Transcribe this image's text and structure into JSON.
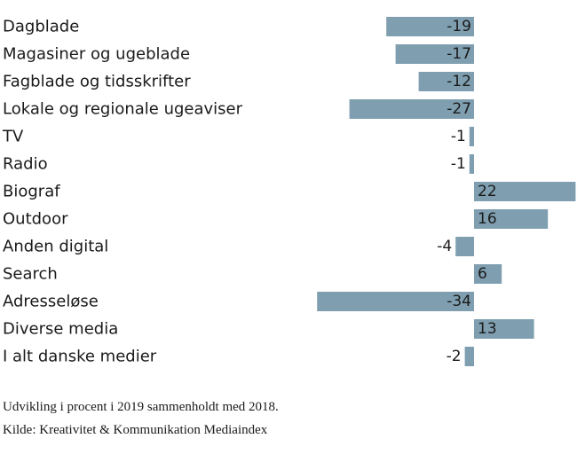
{
  "chart_data": {
    "type": "bar",
    "orientation": "horizontal",
    "categories": [
      "Dagblade",
      "Magasiner og ugeblade",
      "Fagblade og tidsskrifter",
      "Lokale og regionale ugeaviser",
      "TV",
      "Radio",
      "Biograf",
      "Outdoor",
      "Anden digital",
      "Search",
      "Adresseløse",
      "Diverse media",
      "I alt danske medier"
    ],
    "values": [
      -19,
      -17,
      -12,
      -27,
      -1,
      -1,
      22,
      16,
      -4,
      6,
      -34,
      13,
      -2
    ],
    "value_labels": [
      "-19",
      "-17",
      "-12",
      "-27",
      "-1",
      "-1",
      "22",
      "16",
      "-4",
      "6",
      "-34",
      "13",
      "-2"
    ],
    "bar_color": "#7f9fb1",
    "grid": false,
    "legend": "none"
  },
  "footnote": {
    "line1": "Udvikling i procent i 2019 sammenholdt med 2018.",
    "line2": "Kilde: Kreativitet & Kommunikation Mediaindex"
  }
}
